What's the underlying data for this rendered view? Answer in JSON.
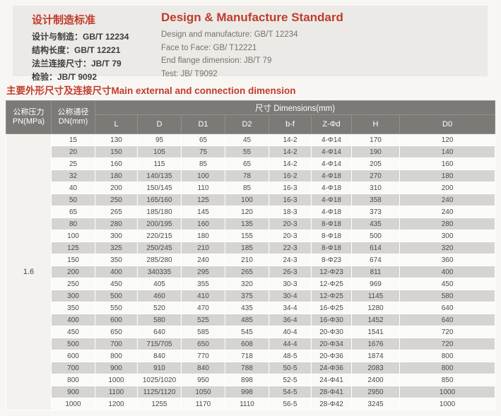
{
  "colors": {
    "accent_red": "#c13b2c",
    "header_gray": "#7c7a76",
    "stripe_gray": "#d5d4d1",
    "row_white": "#fafaf8",
    "panel_bg": "#ebeae6",
    "pn_cell_bg": "#f3f2ef"
  },
  "standards_cn": {
    "title": "设计制造标准",
    "items": [
      "设计与制造：GB/T 12234",
      "结构长度：GB/T 12221",
      "法兰连接尺寸：JB/T 79",
      "检验：JB/T 9092"
    ]
  },
  "standards_en": {
    "title": "Design & Manufacture Standard",
    "items": [
      "Design and manufacture:  GB/T 12234",
      "Face to Face:  GB/ T12221",
      "End flange dimension:  JB/T 79",
      "Test:  JB/ T9092"
    ]
  },
  "section_title": "主要外形尺寸及连接尺寸Main external and connection dimension",
  "table": {
    "header": {
      "pn_line1": "公称压力",
      "pn_line2": "PN(MPa)",
      "dn_line1": "公称通径",
      "dn_line2": "DN(mm)",
      "dims_group": "尺寸 Dimensions(mm)",
      "columns": [
        "L",
        "D",
        "D1",
        "D2",
        "b-f",
        "Z-Φd",
        "H",
        "D0"
      ]
    },
    "pn_value": "1.6",
    "rows": [
      [
        "15",
        "130",
        "95",
        "65",
        "45",
        "14-2",
        "4-Φ14",
        "170",
        "120"
      ],
      [
        "20",
        "150",
        "105",
        "75",
        "55",
        "14-2",
        "4-Φ14",
        "190",
        "140"
      ],
      [
        "25",
        "160",
        "115",
        "85",
        "65",
        "14-2",
        "4-Φ14",
        "205",
        "160"
      ],
      [
        "32",
        "180",
        "140/135",
        "100",
        "78",
        "16-2",
        "4-Φ18",
        "270",
        "180"
      ],
      [
        "40",
        "200",
        "150/145",
        "110",
        "85",
        "16-3",
        "4-Φ18",
        "310",
        "200"
      ],
      [
        "50",
        "250",
        "165/160",
        "125",
        "100",
        "16-3",
        "4-Φ18",
        "358",
        "240"
      ],
      [
        "65",
        "265",
        "185/180",
        "145",
        "120",
        "18-3",
        "4-Φ18",
        "373",
        "240"
      ],
      [
        "80",
        "280",
        "200/195",
        "160",
        "135",
        "20-3",
        "8-Φ18",
        "435",
        "280"
      ],
      [
        "100",
        "300",
        "220/215",
        "180",
        "155",
        "20-3",
        "8-Φ18",
        "500",
        "300"
      ],
      [
        "125",
        "325",
        "250/245",
        "210",
        "185",
        "22-3",
        "8-Φ18",
        "614",
        "320"
      ],
      [
        "150",
        "350",
        "285/280",
        "240",
        "210",
        "24-3",
        "8-Φ23",
        "674",
        "360"
      ],
      [
        "200",
        "400",
        "340335",
        "295",
        "265",
        "26-3",
        "12-Φ23",
        "811",
        "400"
      ],
      [
        "250",
        "450",
        "405",
        "355",
        "320",
        "30-3",
        "12-Φ25",
        "969",
        "450"
      ],
      [
        "300",
        "500",
        "460",
        "410",
        "375",
        "30-4",
        "12-Φ25",
        "1145",
        "580"
      ],
      [
        "350",
        "550",
        "520",
        "470",
        "435",
        "34-4",
        "16-Φ25",
        "1280",
        "640"
      ],
      [
        "400",
        "600",
        "580",
        "525",
        "485",
        "36-4",
        "16-Φ30",
        "1452",
        "640"
      ],
      [
        "450",
        "650",
        "640",
        "585",
        "545",
        "40-4",
        "20-Φ30",
        "1541",
        "720"
      ],
      [
        "500",
        "700",
        "715/705",
        "650",
        "608",
        "44-4",
        "20-Φ34",
        "1676",
        "720"
      ],
      [
        "600",
        "800",
        "840",
        "770",
        "718",
        "48-5",
        "20-Φ36",
        "1874",
        "800"
      ],
      [
        "700",
        "900",
        "910",
        "840",
        "788",
        "50-5",
        "24-Φ36",
        "2083",
        "800"
      ],
      [
        "800",
        "1000",
        "1025/1020",
        "950",
        "898",
        "52-5",
        "24-Φ41",
        "2400",
        "850"
      ],
      [
        "900",
        "1100",
        "1125/1120",
        "1050",
        "998",
        "54-5",
        "28-Φ41",
        "2950",
        "1000"
      ],
      [
        "1000",
        "1200",
        "1255",
        "1170",
        "1110",
        "56-5",
        "28-Φ42",
        "3245",
        "1000"
      ]
    ]
  }
}
